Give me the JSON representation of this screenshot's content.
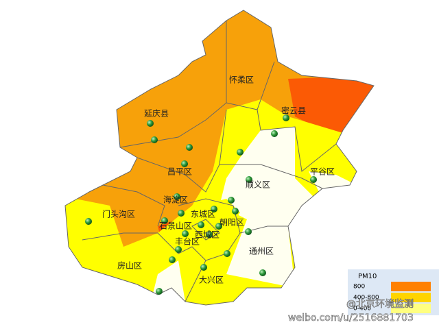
{
  "map": {
    "districts": [
      "怀柔区",
      "密云县",
      "延庆县",
      "昌平区",
      "平谷区",
      "顺义区",
      "海淀区",
      "门头沟区",
      "东城区",
      "朝阳区",
      "石景山区",
      "西城区",
      "丰台区",
      "房山区",
      "通州区",
      "大兴区"
    ]
  },
  "legend": {
    "title": "PM10",
    "items": [
      "800",
      "400-800",
      "0-400"
    ]
  },
  "watermark": {
    "handle": "@北京环境监测",
    "url": "weibo.com/u/2516881703"
  }
}
